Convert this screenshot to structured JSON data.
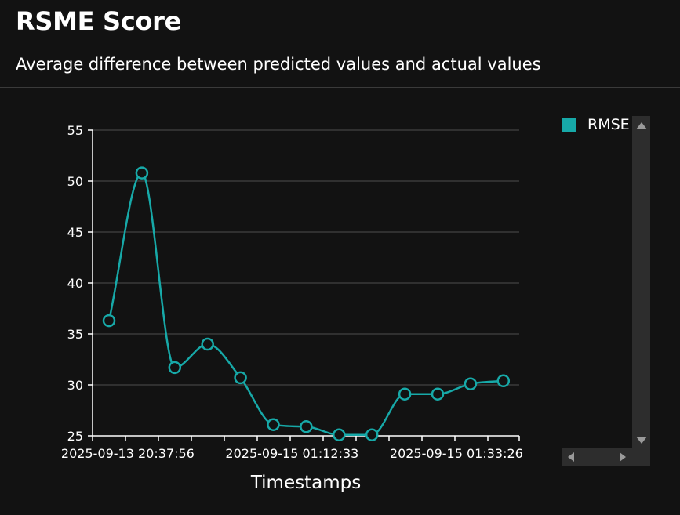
{
  "header": {
    "title": "RSME Score",
    "subtitle": "Average difference between predicted values and actual values"
  },
  "legend": {
    "items": [
      {
        "label": "RMSE",
        "color": "#17a9a8"
      }
    ]
  },
  "colors": {
    "background": "#121212",
    "series": "#17a9a8",
    "grid": "#3a3a3a",
    "axis": "#ffffff",
    "scroll_track": "#2d2d2d",
    "scroll_arrow": "#9a9a9a"
  },
  "chart_data": {
    "type": "line",
    "title": "",
    "xlabel": "Timestamps",
    "ylabel": "",
    "ylim": [
      25,
      55
    ],
    "yticks": [
      25,
      30,
      35,
      40,
      45,
      50,
      55
    ],
    "grid": true,
    "legend_position": "right",
    "smooth": true,
    "x_tick_labels": [
      "2025-09-13 20:37:56",
      "2025-09-15 01:12:33",
      "2025-09-15 01:33:26"
    ],
    "x_tick_label_indices": [
      1,
      6,
      11
    ],
    "series": [
      {
        "name": "RMSE",
        "values": [
          36.3,
          50.8,
          31.7,
          34.0,
          30.7,
          26.1,
          25.9,
          25.1,
          25.1,
          29.1,
          29.1,
          30.1,
          30.4
        ]
      }
    ]
  }
}
